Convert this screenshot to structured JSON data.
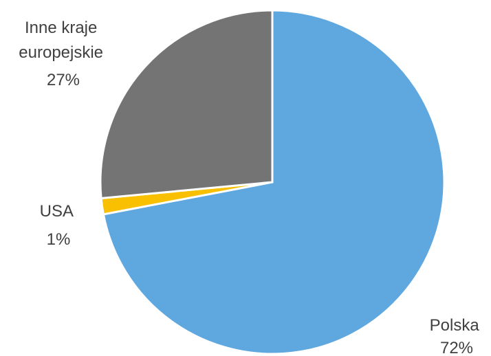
{
  "chart_data": {
    "type": "pie",
    "start_angle_deg": 0,
    "direction": "clockwise",
    "slices": [
      {
        "label": "Polska",
        "percent_label": "72%",
        "value": 72,
        "color": "#5FA7DF"
      },
      {
        "label": "USA",
        "percent_label": "1%",
        "value": 1.5,
        "color": "#F8C000"
      },
      {
        "label": "Inne kraje europejskie",
        "label_lines": [
          "Inne kraje",
          "europejskie"
        ],
        "percent_label": "27%",
        "value": 26.5,
        "color": "#757474"
      }
    ]
  }
}
